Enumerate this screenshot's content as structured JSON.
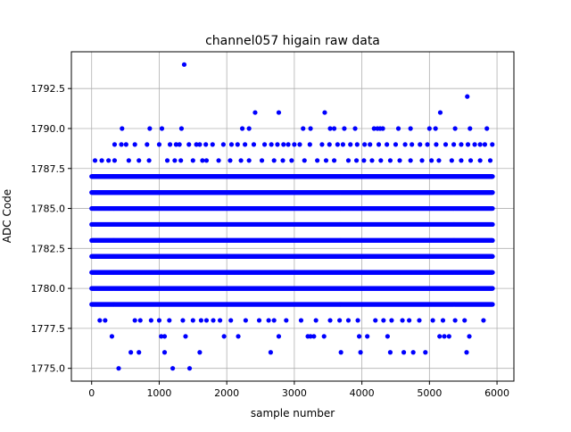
{
  "chart_data": {
    "type": "scatter",
    "title": "channel057 higain raw data",
    "xlabel": "sample number",
    "ylabel": "ADC Code",
    "xlim": [
      -300,
      6250
    ],
    "ylim": [
      1774.2,
      1794.8
    ],
    "x_ticks": [
      0,
      1000,
      2000,
      3000,
      4000,
      5000,
      6000
    ],
    "x_tick_labels": [
      "0",
      "1000",
      "2000",
      "3000",
      "4000",
      "5000",
      "6000"
    ],
    "y_ticks": [
      1775.0,
      1777.5,
      1780.0,
      1782.5,
      1785.0,
      1787.5,
      1790.0,
      1792.5
    ],
    "y_tick_labels": [
      "1775.0",
      "1777.5",
      "1780.0",
      "1782.5",
      "1785.0",
      "1787.5",
      "1790.0",
      "1792.5"
    ],
    "grid": true,
    "legend": "none",
    "marker_color": "#0000ff",
    "n_samples": 5940,
    "levels": [
      {
        "y": 1775,
        "x": [
          400,
          1200,
          1450
        ]
      },
      {
        "y": 1776,
        "x": [
          580,
          700,
          1080,
          1600,
          2650,
          3690,
          3980,
          4420,
          4620,
          4760,
          4940,
          5550
        ]
      },
      {
        "y": 1777,
        "x": [
          300,
          1030,
          1080,
          1390,
          1960,
          2170,
          2770,
          3200,
          3240,
          3290,
          3440,
          3960,
          4080,
          4380,
          5150,
          5220,
          5290,
          5590
        ]
      },
      {
        "y": 1778,
        "x": [
          120,
          200,
          640,
          720,
          880,
          1000,
          1150,
          1350,
          1500,
          1620,
          1700,
          1800,
          1900,
          2060,
          2280,
          2480,
          2620,
          2700,
          2880,
          3100,
          3320,
          3530,
          3670,
          3800,
          3940,
          4200,
          4320,
          4440,
          4600,
          4700,
          4850,
          5050,
          5200,
          5380,
          5520,
          5800
        ]
      },
      {
        "y": 1788,
        "x": [
          50,
          150,
          250,
          340,
          550,
          700,
          850,
          1120,
          1230,
          1320,
          1500,
          1640,
          1700,
          1880,
          2050,
          2210,
          2330,
          2520,
          2700,
          2830,
          2960,
          3150,
          3340,
          3470,
          3590,
          3800,
          3920,
          4030,
          4150,
          4280,
          4420,
          4560,
          4720,
          4890,
          5030,
          5140,
          5330,
          5470,
          5610,
          5750,
          5900
        ]
      },
      {
        "y": 1789,
        "x": [
          340,
          440,
          510,
          640,
          820,
          1000,
          1160,
          1250,
          1300,
          1440,
          1550,
          1600,
          1690,
          1790,
          1950,
          2070,
          2160,
          2270,
          2400,
          2560,
          2660,
          2750,
          2840,
          2910,
          3000,
          3080,
          3230,
          3410,
          3520,
          3640,
          3720,
          3830,
          3930,
          4040,
          4120,
          4250,
          4370,
          4500,
          4640,
          4740,
          4860,
          4970,
          5100,
          5240,
          5360,
          5470,
          5570,
          5670,
          5750,
          5820,
          5930
        ]
      },
      {
        "y": 1790,
        "x": [
          450,
          860,
          1040,
          1330,
          2230,
          2330,
          3130,
          3240,
          3530,
          3590,
          3740,
          3900,
          4180,
          4230,
          4270,
          4310,
          4540,
          4720,
          5000,
          5090,
          5380,
          5600,
          5850
        ]
      },
      {
        "y": 1791,
        "x": [
          2420,
          2770,
          3450,
          5160
        ]
      },
      {
        "y": 1792,
        "x": [
          5560
        ]
      },
      {
        "y": 1794,
        "x": [
          1370
        ]
      }
    ],
    "dense_levels": [
      1779,
      1780,
      1781,
      1782,
      1783,
      1784,
      1785,
      1786,
      1787
    ]
  }
}
